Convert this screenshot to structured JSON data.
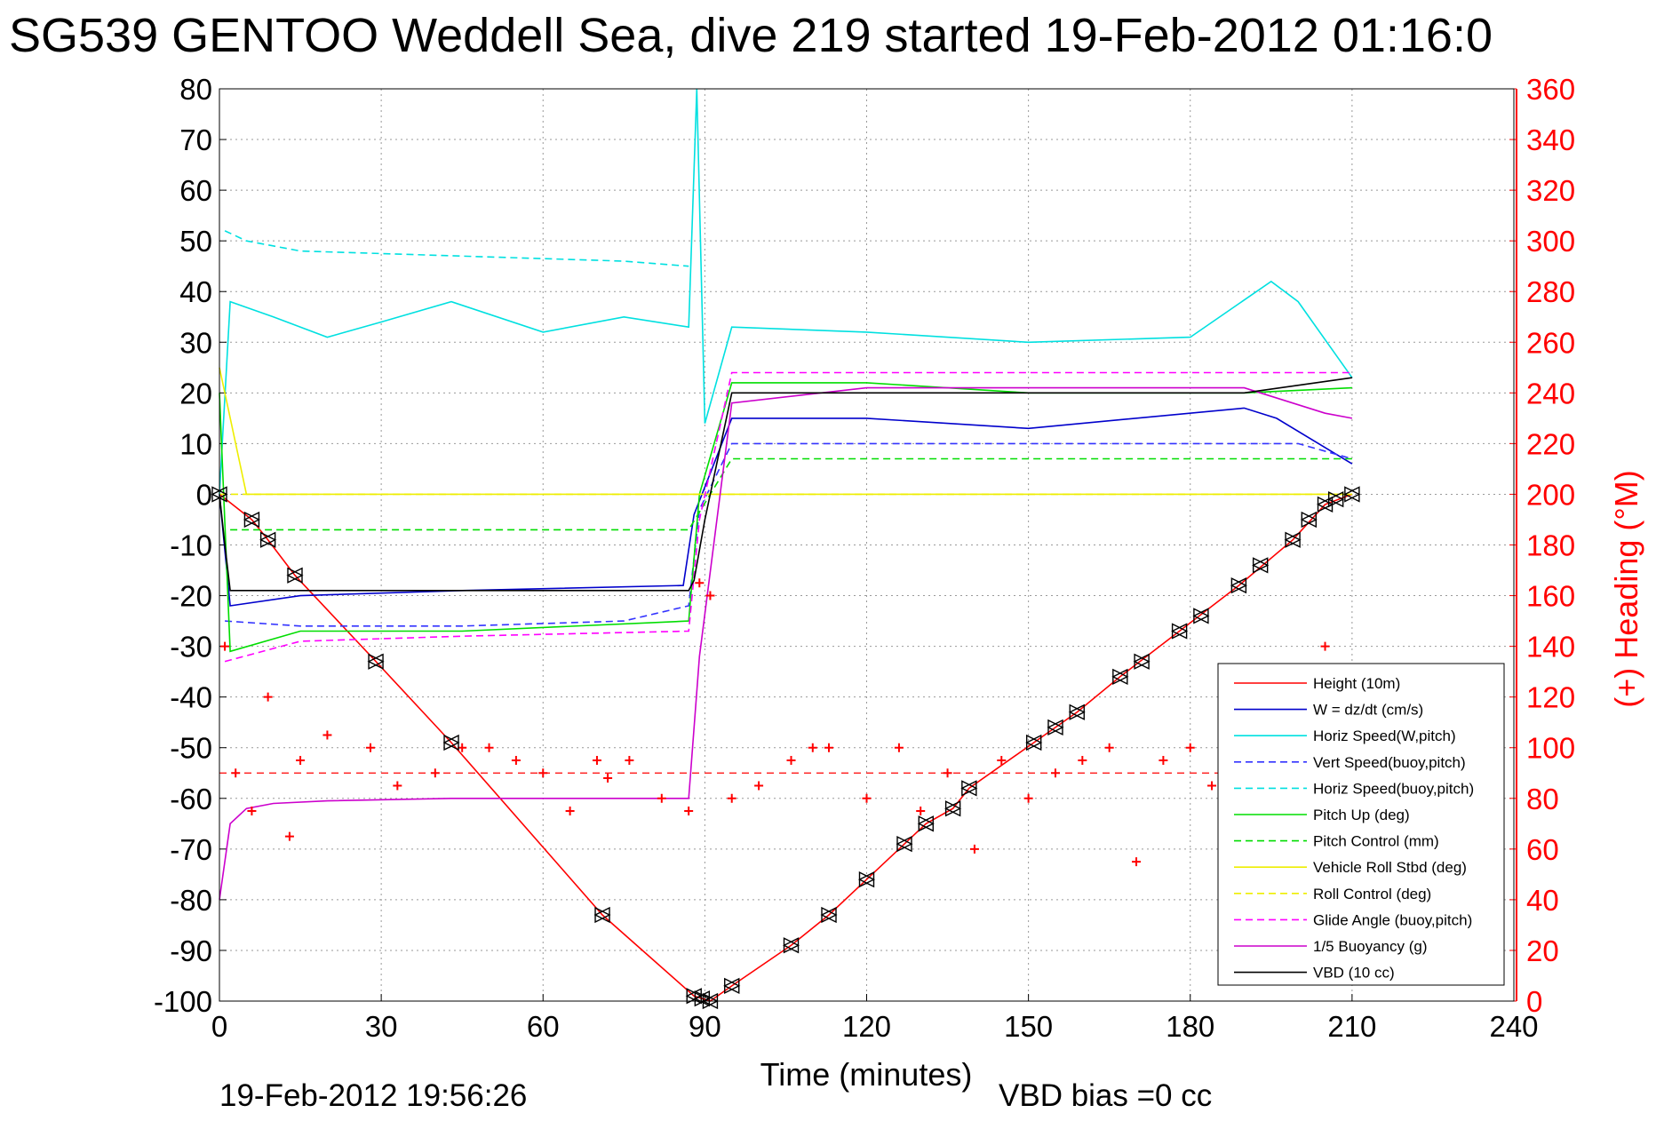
{
  "chart_data": {
    "type": "line",
    "title": "SG539 GENTOO Weddell Sea, dive 219 started 19-Feb-2012 01:16:0",
    "xlabel": "Time (minutes)",
    "ylabel": "",
    "y2label": "(+) Heading (°M)",
    "xlim": [
      0,
      240
    ],
    "ylim": [
      -100,
      80
    ],
    "y2lim": [
      0,
      360
    ],
    "x_ticks": [
      0,
      30,
      60,
      90,
      120,
      150,
      180,
      210,
      240
    ],
    "y_ticks": [
      80,
      70,
      60,
      50,
      40,
      30,
      20,
      10,
      0,
      -10,
      -20,
      -30,
      -40,
      -50,
      -60,
      -70,
      -80,
      -90,
      -100
    ],
    "y2_ticks": [
      360,
      340,
      320,
      300,
      280,
      260,
      240,
      220,
      200,
      180,
      160,
      140,
      120,
      100,
      80,
      60,
      40,
      20,
      0
    ],
    "grid": true,
    "legend_position": "bottom-right",
    "series": [
      {
        "name": "Height (10m)",
        "color": "#ff0000",
        "style": "solid",
        "x": [
          0,
          6,
          9,
          14,
          29,
          43,
          71,
          88,
          91,
          95,
          106,
          113,
          120,
          127,
          131,
          136,
          139,
          151,
          159,
          167,
          178,
          189,
          199,
          205,
          210
        ],
        "y": [
          0,
          -5,
          -9,
          -16,
          -33,
          -49,
          -83,
          -99,
          -100,
          -97,
          -89,
          -83,
          -76,
          -69,
          -65,
          -62,
          -58,
          -49,
          -43,
          -36,
          -27,
          -18,
          -9,
          -2,
          0
        ]
      },
      {
        "name": "W = dz/dt (cm/s)",
        "color": "#0000cc",
        "style": "solid",
        "x": [
          0,
          2,
          15,
          45,
          86,
          88,
          95,
          120,
          150,
          190,
          196,
          210
        ],
        "y": [
          0,
          -22,
          -20,
          -19,
          -18,
          -4,
          15,
          15,
          13,
          17,
          15,
          6
        ]
      },
      {
        "name": "Horiz Speed(W,pitch)",
        "color": "#00e0e0",
        "style": "solid",
        "x": [
          0,
          2,
          10,
          20,
          30,
          43,
          60,
          75,
          87,
          88.5,
          90,
          95,
          120,
          150,
          180,
          195,
          200,
          210
        ],
        "y": [
          0,
          38,
          35,
          31,
          34,
          38,
          32,
          35,
          33,
          80,
          14,
          33,
          32,
          30,
          31,
          42,
          38,
          23
        ]
      },
      {
        "name": "Vert Speed(buoy,pitch)",
        "color": "#3333ff",
        "style": "dashed",
        "x": [
          1,
          15,
          45,
          75,
          87,
          89,
          95,
          150,
          200,
          210
        ],
        "y": [
          -25,
          -26,
          -26,
          -25,
          -22,
          -3,
          10,
          10,
          10,
          7
        ]
      },
      {
        "name": "Horiz Speed(buoy,pitch)",
        "color": "#00e0e0",
        "style": "dashed",
        "x": [
          1,
          5,
          15,
          45,
          75,
          87
        ],
        "y": [
          52,
          50,
          48,
          47,
          46,
          45
        ]
      },
      {
        "name": "Pitch Up (deg)",
        "color": "#00dd00",
        "style": "solid",
        "x": [
          0,
          2,
          15,
          45,
          87,
          89,
          95,
          120,
          150,
          190,
          210
        ],
        "y": [
          20,
          -31,
          -27,
          -27,
          -25,
          0,
          22,
          22,
          20,
          20,
          21
        ]
      },
      {
        "name": "Pitch Control (mm)",
        "color": "#00dd00",
        "style": "dashed",
        "x": [
          2,
          15,
          45,
          87,
          95,
          150,
          210
        ],
        "y": [
          -7,
          -7,
          -7,
          -7,
          7,
          7,
          7
        ]
      },
      {
        "name": "Vehicle Roll Stbd (deg)",
        "color": "#eeee00",
        "style": "solid",
        "x": [
          0,
          5,
          15,
          45,
          87,
          90,
          120,
          150,
          180,
          210
        ],
        "y": [
          25,
          0,
          0,
          0,
          0,
          0,
          0,
          0,
          0,
          0
        ]
      },
      {
        "name": "Roll Control (deg)",
        "color": "#eeee00",
        "style": "dashed",
        "x": [
          0,
          2,
          120,
          210
        ],
        "y": [
          0,
          0,
          0,
          0
        ]
      },
      {
        "name": "Glide Angle (buoy,pitch)",
        "color": "#ff00ff",
        "style": "dashed",
        "x": [
          1,
          15,
          45,
          87,
          89,
          95,
          150,
          210
        ],
        "y": [
          -33,
          -29,
          -28,
          -27,
          -5,
          24,
          24,
          24
        ]
      },
      {
        "name": "1/5 Buoyancy (g)",
        "color": "#cc00cc",
        "style": "solid",
        "x": [
          0,
          2,
          5,
          10,
          20,
          43,
          87,
          89,
          95,
          120,
          190,
          205,
          210
        ],
        "y": [
          -80,
          -65,
          -62,
          -61,
          -60.5,
          -60,
          -60,
          -32,
          18,
          21,
          21,
          16,
          15
        ]
      },
      {
        "name": "VBD (10 cc)",
        "color": "#000000",
        "style": "solid",
        "x": [
          0,
          1,
          2,
          87,
          88,
          90,
          95,
          190,
          210
        ],
        "y": [
          0,
          -10,
          -19,
          -19,
          -17,
          -5,
          20,
          20,
          23
        ]
      },
      {
        "name": "Heading",
        "axis": "right",
        "color": "#ff0000",
        "style": "markers",
        "x": [
          1,
          3,
          6,
          9,
          13,
          15,
          20,
          28,
          33,
          40,
          45,
          50,
          55,
          60,
          65,
          70,
          72,
          76,
          82,
          87,
          89,
          91,
          95,
          100,
          106,
          110,
          113,
          120,
          126,
          130,
          135,
          140,
          145,
          150,
          155,
          160,
          165,
          170,
          175,
          180,
          184,
          190,
          195,
          200,
          205
        ],
        "y": [
          140,
          90,
          75,
          120,
          65,
          95,
          105,
          100,
          85,
          90,
          100,
          100,
          95,
          90,
          75,
          95,
          88,
          95,
          80,
          75,
          165,
          160,
          80,
          85,
          95,
          100,
          100,
          80,
          100,
          75,
          90,
          60,
          95,
          80,
          90,
          95,
          100,
          55,
          95,
          100,
          85,
          110,
          105,
          100,
          140
        ]
      }
    ],
    "reference_lines": [
      {
        "axis": "right",
        "y": 90,
        "color": "#ff0000",
        "style": "dashed"
      }
    ],
    "markers": {
      "shape": "triangles",
      "color": "#000000",
      "x": [
        0,
        6,
        9,
        14,
        29,
        43,
        71,
        88,
        89.5,
        91,
        95,
        106,
        113,
        120,
        127,
        131,
        136,
        139,
        151,
        155,
        159,
        167,
        171,
        178,
        182,
        189,
        193,
        199,
        202,
        205,
        207,
        210
      ],
      "y": [
        0,
        -5,
        -9,
        -16,
        -33,
        -49,
        -83,
        -99,
        -99.5,
        -100,
        -97,
        -89,
        -83,
        -76,
        -69,
        -65,
        -62,
        -58,
        -49,
        -46,
        -43,
        -36,
        -33,
        -27,
        -24,
        -18,
        -14,
        -9,
        -5,
        -2,
        -1,
        0
      ]
    }
  },
  "footer": {
    "timestamp": "19-Feb-2012 19:56:26",
    "vbd_bias": "VBD bias =0 cc"
  }
}
